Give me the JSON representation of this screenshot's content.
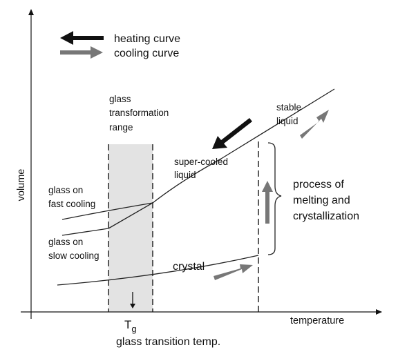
{
  "legend": {
    "heating": "heating curve",
    "cooling": "cooling curve"
  },
  "axes": {
    "x_label": "temperature",
    "y_label": "volume"
  },
  "labels": {
    "glass_range": [
      "glass",
      "transformation",
      "range"
    ],
    "stable_liquid": [
      "stable",
      "liquid"
    ],
    "supercooled": [
      "super-cooled",
      "liquid"
    ],
    "glass_fast": [
      "glass on",
      "fast cooling"
    ],
    "glass_slow": [
      "glass on",
      "slow cooling"
    ],
    "crystal": "crystal",
    "process": [
      "process of",
      "melting and",
      "crystallization"
    ],
    "tg_symbol": "T",
    "tg_subscript": "g",
    "tg_caption": "glass transition temp."
  },
  "colors": {
    "heating_arrow": "#111111",
    "cooling_arrow": "#777777",
    "range_fill": "#e3e3e3"
  }
}
